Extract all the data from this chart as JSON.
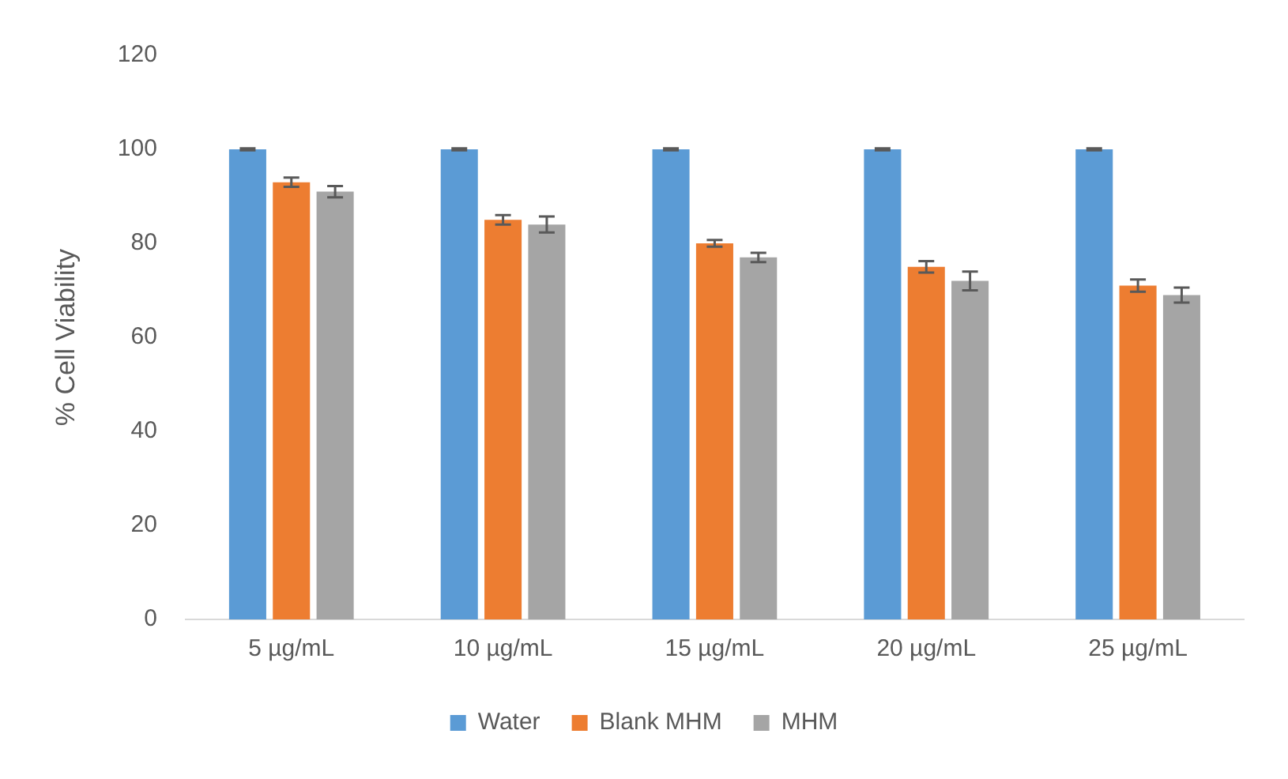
{
  "chart_data": {
    "type": "bar",
    "ylabel": "% Cell Viability",
    "categories": [
      "5 µg/mL",
      "10 µg/mL",
      "15 µg/mL",
      "20 µg/mL",
      "25 µg/mL"
    ],
    "series": [
      {
        "name": "Water",
        "color": "#5b9bd5",
        "values": [
          100,
          100,
          100,
          100,
          100
        ],
        "errors": [
          0.2,
          0.2,
          0.2,
          0.2,
          0.2
        ]
      },
      {
        "name": "Blank MHM",
        "color": "#ed7d31",
        "values": [
          93,
          85,
          80,
          75,
          71
        ],
        "errors": [
          1,
          1,
          0.7,
          1.2,
          1.3
        ]
      },
      {
        "name": "MHM",
        "color": "#a5a5a5",
        "values": [
          91,
          84,
          77,
          72,
          69
        ],
        "errors": [
          1.2,
          1.7,
          1,
          2,
          1.6
        ]
      }
    ],
    "ylim": [
      0,
      120
    ],
    "yticks": [
      0,
      20,
      40,
      60,
      80,
      100,
      120
    ],
    "grid": false,
    "legend": "bottom"
  }
}
